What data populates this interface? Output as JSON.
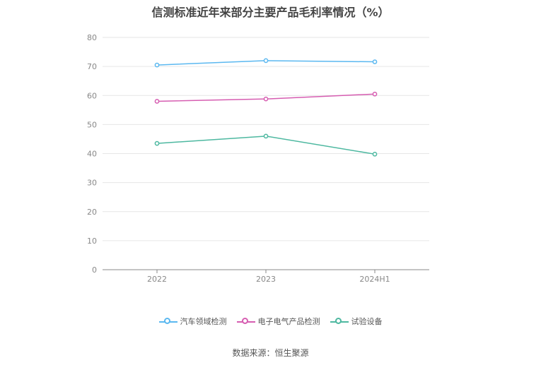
{
  "chart_data": {
    "type": "line",
    "title": "信测标准近年来部分主要产品毛利率情况（%）",
    "categories": [
      "2022",
      "2023",
      "2024H1"
    ],
    "ylim": [
      0,
      80
    ],
    "yticks": [
      "0",
      "10",
      "20",
      "30",
      "40",
      "50",
      "60",
      "70",
      "80"
    ],
    "grid": true,
    "legend_position": "bottom",
    "series": [
      {
        "name": "汽车领域检测",
        "values": [
          70.5,
          72.0,
          71.6
        ],
        "color": "#5bb8f0"
      },
      {
        "name": "电子电气产品检测",
        "values": [
          58.0,
          58.8,
          60.5
        ],
        "color": "#d65db1"
      },
      {
        "name": "试验设备",
        "values": [
          43.5,
          46.0,
          39.8
        ],
        "color": "#4db8a0"
      }
    ]
  },
  "source": "数据来源：恒生聚源"
}
